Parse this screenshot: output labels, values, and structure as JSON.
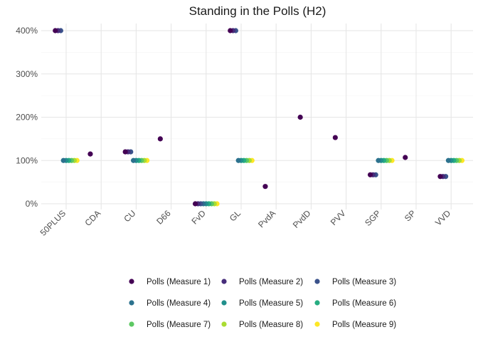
{
  "chart_data": {
    "type": "scatter",
    "title": "Standing in the Polls (H2)",
    "xlabel": "",
    "ylabel": "",
    "categories": [
      "50PLUS",
      "CDA",
      "CU",
      "D66",
      "FvD",
      "GL",
      "PvdA",
      "PvdD",
      "PVV",
      "SGP",
      "SP",
      "VVD"
    ],
    "ylim": [
      -0.05,
      4.2
    ],
    "y_ticks": [
      0,
      1,
      2,
      3,
      4
    ],
    "y_tick_labels": [
      "0%",
      "100%",
      "200%",
      "300%",
      "400%"
    ],
    "grid": true,
    "legend_position": "bottom",
    "series": [
      {
        "name": "Polls (Measure 1)",
        "color": "#440154",
        "values": [
          4.0,
          1.15,
          1.2,
          1.5,
          0.0,
          4.0,
          0.4,
          2.0,
          1.53,
          0.67,
          1.07,
          0.63
        ]
      },
      {
        "name": "Polls (Measure 2)",
        "color": "#472D7B",
        "values": [
          4.0,
          null,
          1.2,
          null,
          0.0,
          4.0,
          null,
          null,
          null,
          0.67,
          null,
          0.63
        ]
      },
      {
        "name": "Polls (Measure 3)",
        "color": "#3B528B",
        "values": [
          4.0,
          null,
          1.2,
          null,
          0.0,
          4.0,
          null,
          null,
          null,
          0.67,
          null,
          0.63
        ]
      },
      {
        "name": "Polls (Measure 4)",
        "color": "#2C728E",
        "values": [
          1.0,
          null,
          1.0,
          null,
          0.0,
          1.0,
          null,
          null,
          null,
          1.0,
          null,
          1.0
        ]
      },
      {
        "name": "Polls (Measure 5)",
        "color": "#21908C",
        "values": [
          1.0,
          null,
          1.0,
          null,
          0.0,
          1.0,
          null,
          null,
          null,
          1.0,
          null,
          1.0
        ]
      },
      {
        "name": "Polls (Measure 6)",
        "color": "#27AD81",
        "values": [
          1.0,
          null,
          1.0,
          null,
          0.0,
          1.0,
          null,
          null,
          null,
          1.0,
          null,
          1.0
        ]
      },
      {
        "name": "Polls (Measure 7)",
        "color": "#5DC863",
        "values": [
          1.0,
          null,
          1.0,
          null,
          0.0,
          1.0,
          null,
          null,
          null,
          1.0,
          null,
          1.0
        ]
      },
      {
        "name": "Polls (Measure 8)",
        "color": "#AADC32",
        "values": [
          1.0,
          null,
          1.0,
          null,
          0.0,
          1.0,
          null,
          null,
          null,
          1.0,
          null,
          1.0
        ]
      },
      {
        "name": "Polls (Measure 9)",
        "color": "#FDE725",
        "values": [
          1.0,
          null,
          1.0,
          null,
          0.0,
          1.0,
          null,
          null,
          null,
          1.0,
          null,
          1.0
        ]
      }
    ]
  }
}
